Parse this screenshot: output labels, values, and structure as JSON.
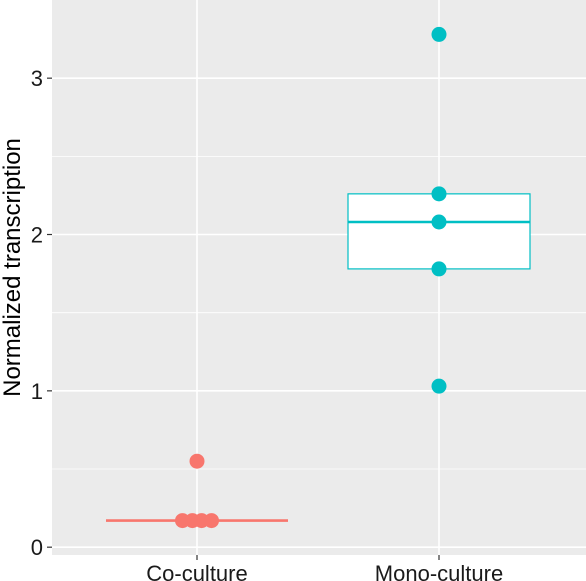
{
  "chart_data": {
    "type": "box",
    "title": "",
    "xlabel": "",
    "ylabel": "Normalized transcription",
    "categories": [
      "Co-culture",
      "Mono-culture"
    ],
    "ylim": [
      -0.05,
      3.5
    ],
    "yticks": [
      0,
      1,
      2,
      3
    ],
    "grid": true,
    "legend": "none",
    "colors": {
      "Co-culture": "#F8766D",
      "Mono-culture": "#00BFC4",
      "panel_background": "#EBEBEB",
      "grid": "#FFFFFF"
    },
    "boxes": [
      {
        "category": "Co-culture",
        "q1": 0.17,
        "median": 0.17,
        "q3": 0.17
      },
      {
        "category": "Mono-culture",
        "q1": 1.78,
        "median": 2.08,
        "q3": 2.26
      }
    ],
    "points": [
      {
        "category": "Co-culture",
        "x_offset": 0,
        "y": 0.55
      },
      {
        "category": "Co-culture",
        "x_offset": -0.22,
        "y": 0.17
      },
      {
        "category": "Co-culture",
        "x_offset": -0.07,
        "y": 0.17
      },
      {
        "category": "Co-culture",
        "x_offset": 0.07,
        "y": 0.17
      },
      {
        "category": "Co-culture",
        "x_offset": 0.22,
        "y": 0.17
      },
      {
        "category": "Mono-culture",
        "x_offset": 0,
        "y": 3.28
      },
      {
        "category": "Mono-culture",
        "x_offset": 0,
        "y": 2.26
      },
      {
        "category": "Mono-culture",
        "x_offset": 0,
        "y": 2.08
      },
      {
        "category": "Mono-culture",
        "x_offset": 0,
        "y": 1.78
      },
      {
        "category": "Mono-culture",
        "x_offset": 0,
        "y": 1.03
      }
    ]
  }
}
